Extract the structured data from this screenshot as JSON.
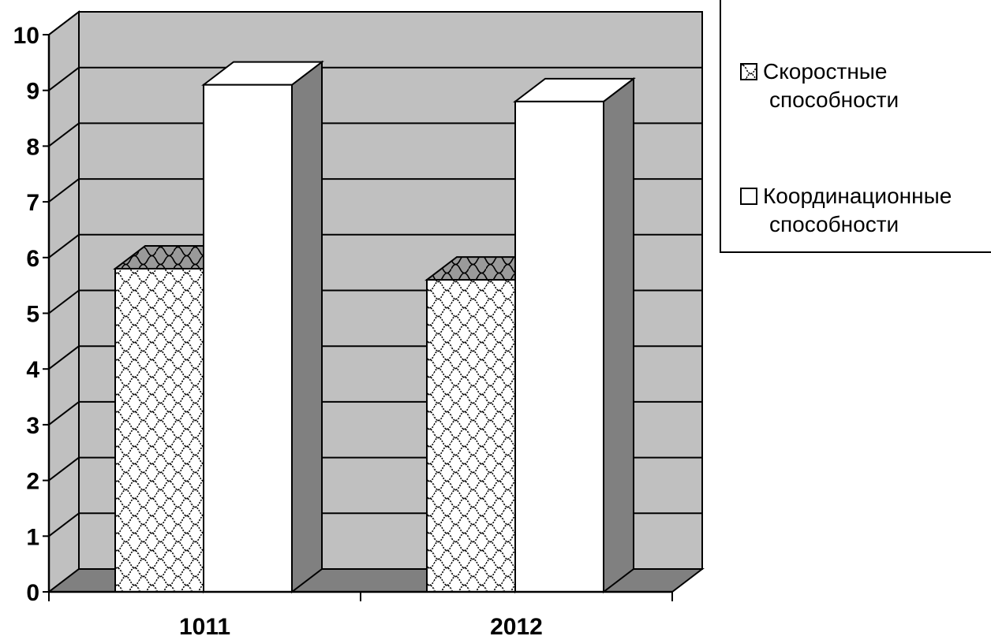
{
  "chart_data": {
    "type": "bar",
    "style": "3d-clustered-column",
    "categories": [
      "1011",
      "2012"
    ],
    "series": [
      {
        "name": "Скоростные способности",
        "values": [
          5.8,
          5.6
        ],
        "pattern": "scale-hatch"
      },
      {
        "name": "Координационные способности",
        "values": [
          9.1,
          8.8
        ],
        "pattern": "solid-white"
      }
    ],
    "ylim": [
      0,
      10
    ],
    "yticks": [
      "0",
      "1",
      "2",
      "3",
      "4",
      "5",
      "6",
      "7",
      "8",
      "9",
      "10"
    ],
    "title": "",
    "xlabel": "",
    "ylabel": "",
    "grid": true,
    "legend_position": "right",
    "legend_lines": [
      [
        "Скоростные",
        "способности"
      ],
      [
        "Координационные",
        "способности"
      ]
    ],
    "colors": {
      "wall": "#c0c0c0",
      "floor": "#808080",
      "bar_side": "#808080",
      "bar_face_white": "#ffffff",
      "outline": "#000000"
    }
  }
}
